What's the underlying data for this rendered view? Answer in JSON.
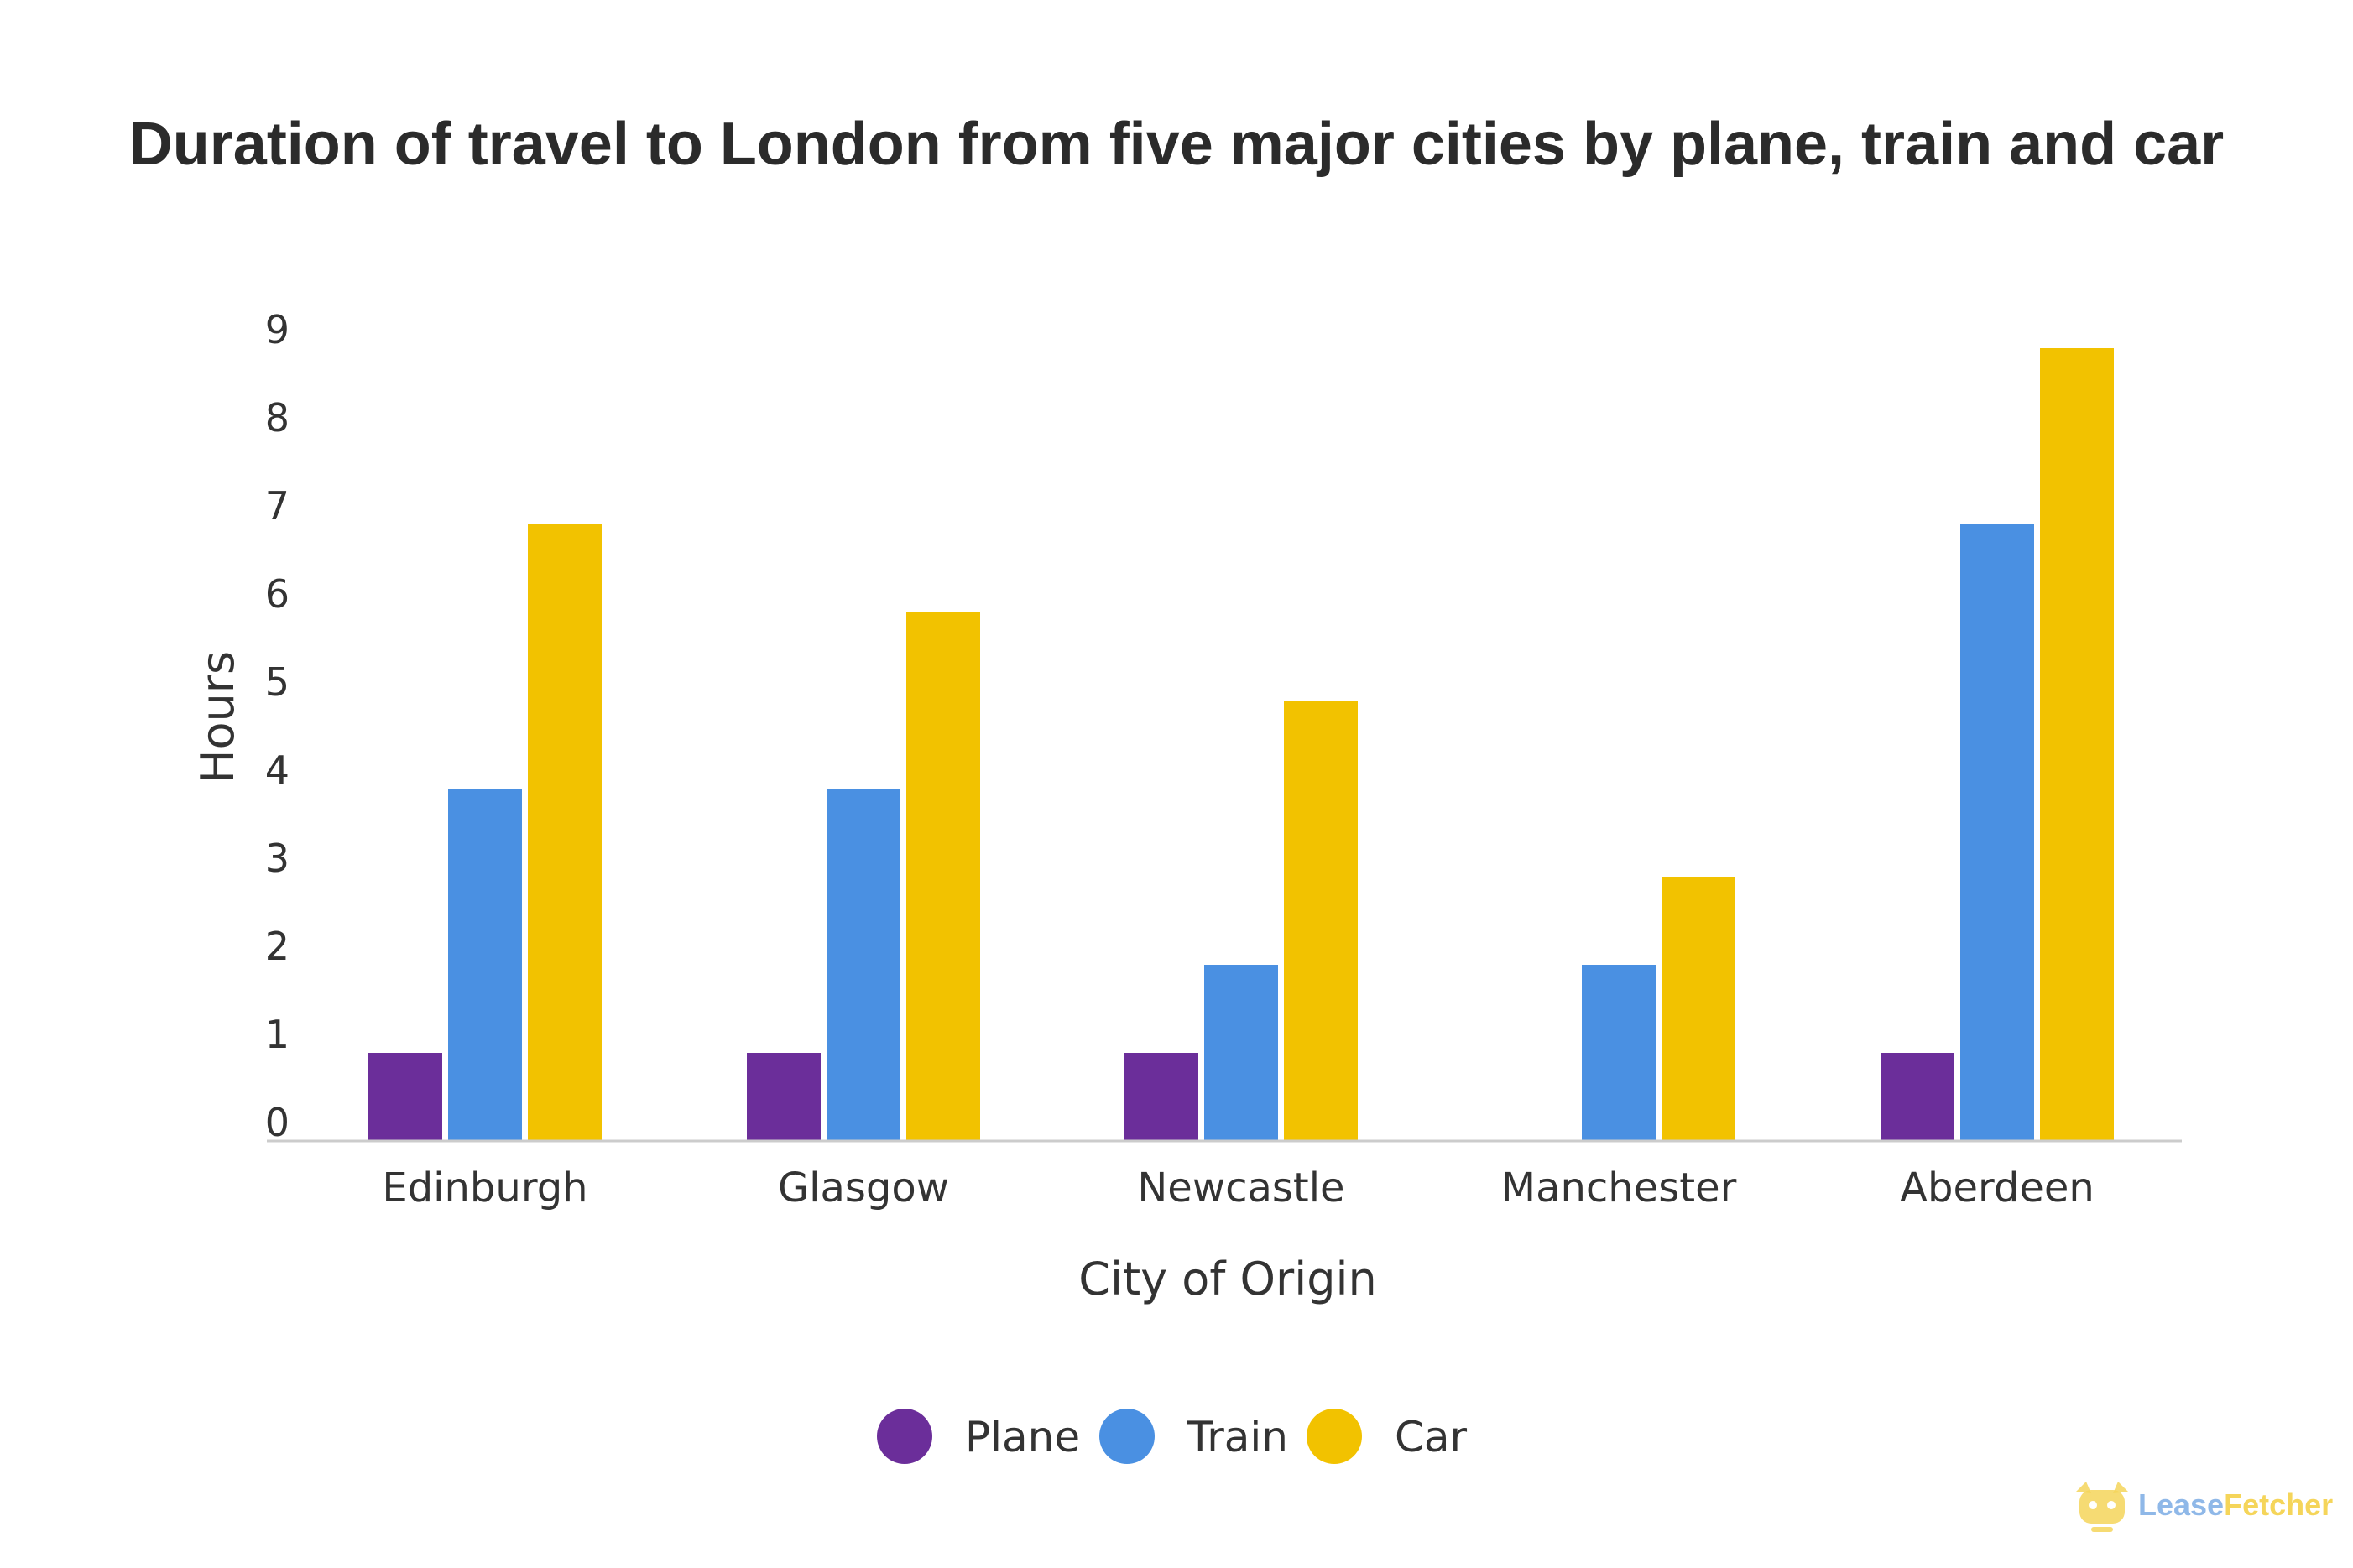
{
  "chart_data": {
    "type": "bar",
    "title": "Duration of travel to London from five major cities by plane, train and car",
    "xlabel": "City of Origin",
    "ylabel": "Hours",
    "categories": [
      "Edinburgh",
      "Glasgow",
      "Newcastle",
      "Manchester",
      "Aberdeen"
    ],
    "series": [
      {
        "name": "Plane",
        "color": "#6b2e9a",
        "values": [
          1,
          1,
          1,
          0,
          1
        ]
      },
      {
        "name": "Train",
        "color": "#4a90e2",
        "values": [
          4,
          4,
          2,
          2,
          7
        ]
      },
      {
        "name": "Car",
        "color": "#f2c200",
        "values": [
          7,
          6,
          5,
          3,
          9
        ]
      }
    ],
    "y_ticks": [
      "0",
      "1",
      "2",
      "3",
      "4",
      "5",
      "6",
      "7",
      "8",
      "9"
    ],
    "ylim": [
      0,
      9
    ],
    "grid": false,
    "legend_position": "bottom-center"
  },
  "watermark": {
    "text_part1": "Lease",
    "text_part2": "Fetcher",
    "color1": "#8fb8e8",
    "color2": "#f5d55a"
  }
}
